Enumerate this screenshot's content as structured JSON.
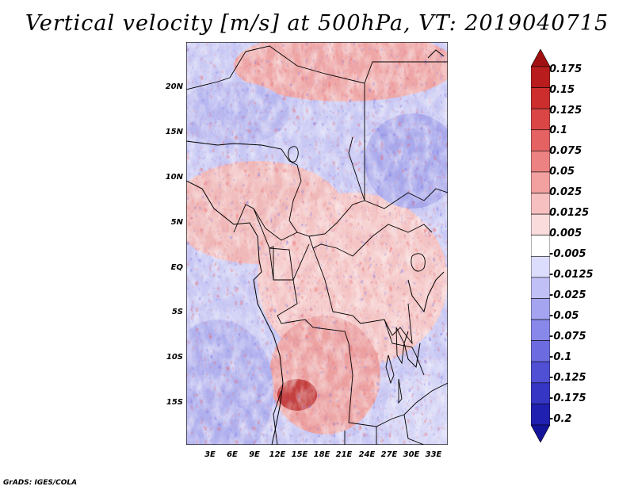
{
  "title": "Vertical velocity [m/s] at 500hPa, VT: 2019040715",
  "credit": "GrADS: IGES/COLA",
  "map": {
    "lat_labels": [
      "20N",
      "15N",
      "10N",
      "5N",
      "EQ",
      "5S",
      "10S",
      "15S"
    ],
    "lon_labels": [
      "3E",
      "6E",
      "9E",
      "12E",
      "15E",
      "18E",
      "21E",
      "24E",
      "27E",
      "30E",
      "33E"
    ],
    "lon_range_deg": [
      0,
      35
    ],
    "lat_range_deg": [
      -19.5,
      25
    ]
  },
  "colorbar": {
    "labels": [
      "0.175",
      "0.15",
      "0.125",
      "0.1",
      "0.075",
      "0.05",
      "0.025",
      "0.0125",
      "0.005",
      "-0.005",
      "-0.0125",
      "-0.025",
      "-0.05",
      "-0.075",
      "-0.1",
      "-0.125",
      "-0.175",
      "-0.2"
    ],
    "colors": [
      "#a01010",
      "#b81c1c",
      "#cc2e2e",
      "#da4646",
      "#e46262",
      "#ec8282",
      "#f2a0a0",
      "#f7c0c0",
      "#fbdcdc",
      "#ffffff",
      "#dcdcfc",
      "#c0c0f6",
      "#a4a4f0",
      "#8888ea",
      "#6c6ce0",
      "#5050d4",
      "#3636c4",
      "#2020b0",
      "#14149a"
    ]
  }
}
